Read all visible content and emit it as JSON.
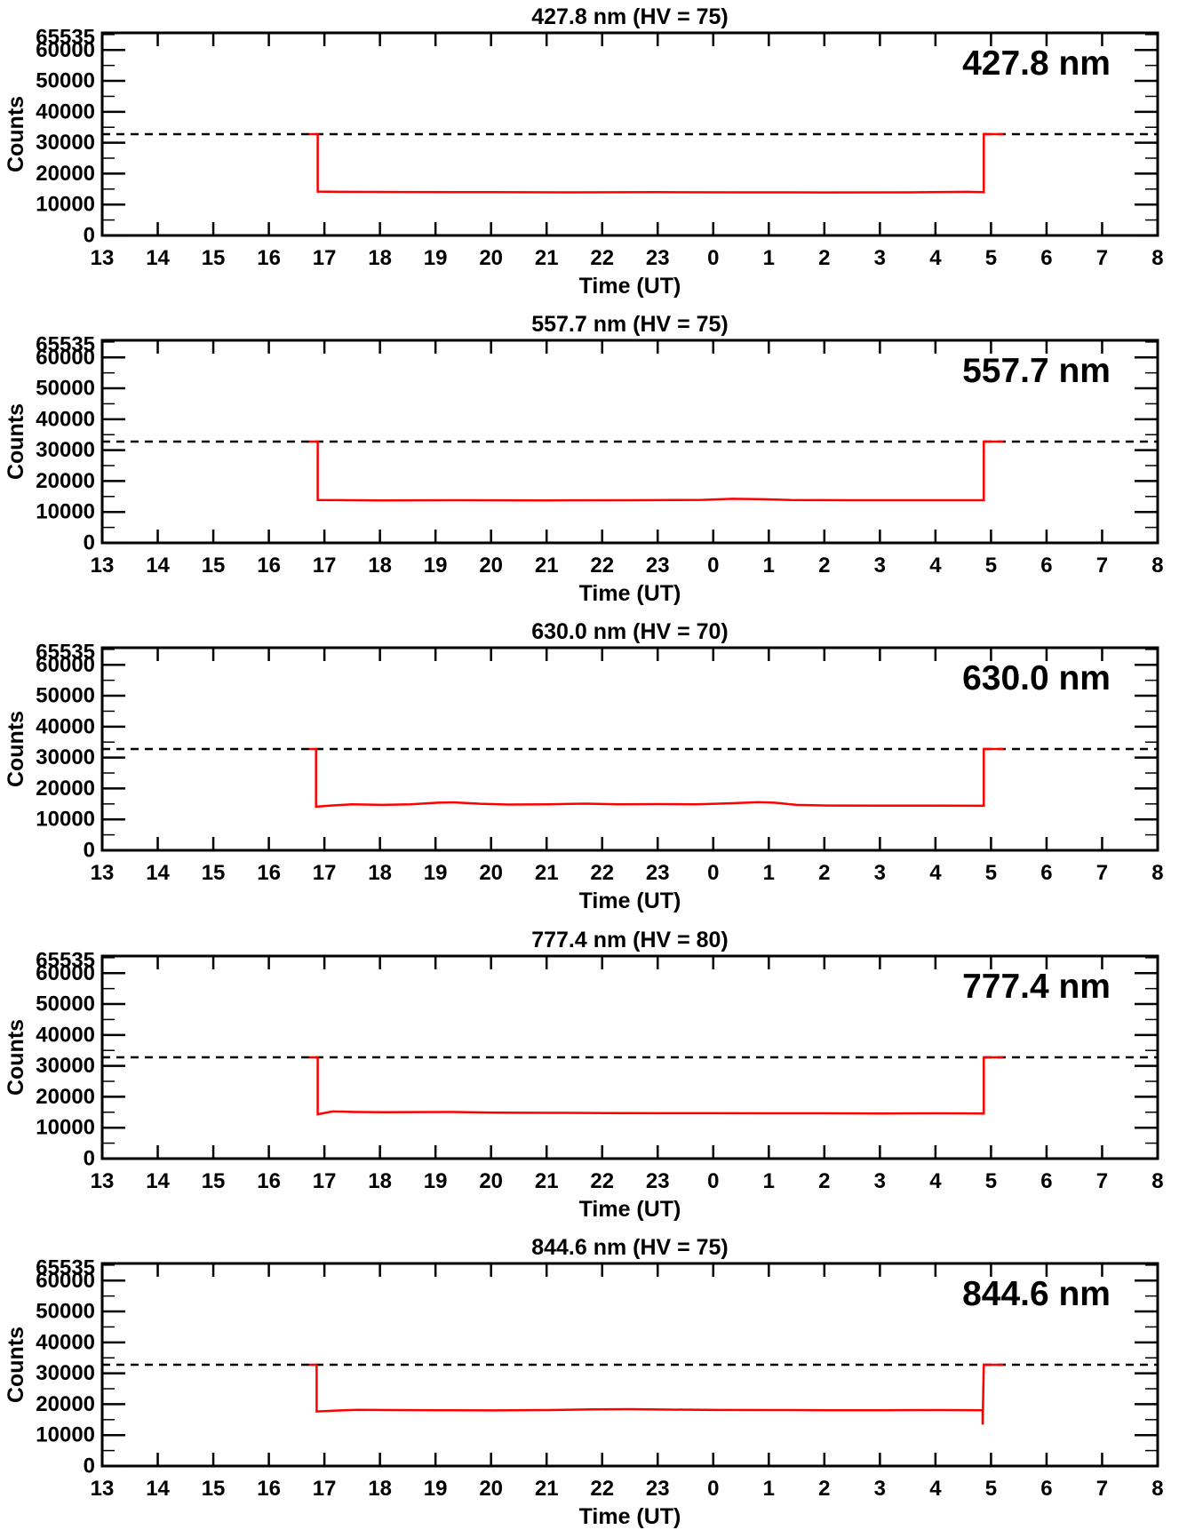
{
  "colors": {
    "trace": "#ff0000",
    "axis": "#000000",
    "background": "#ffffff",
    "dashed_line": "#000000"
  },
  "chart_data": [
    {
      "type": "line",
      "title": "427.8 nm (HV = 75)",
      "wavelength_label": "427.8 nm",
      "hv": 75,
      "xlabel": "Time (UT)",
      "ylabel": "Counts",
      "xlim": [
        13,
        32
      ],
      "ylim": [
        0,
        65535
      ],
      "dashed_level": 32767.5,
      "y_minor_step": 5000,
      "x_ticks": [
        {
          "value": 13,
          "label": "13"
        },
        {
          "value": 14,
          "label": "14"
        },
        {
          "value": 15,
          "label": "15"
        },
        {
          "value": 16,
          "label": "16"
        },
        {
          "value": 17,
          "label": "17"
        },
        {
          "value": 18,
          "label": "18"
        },
        {
          "value": 19,
          "label": "19"
        },
        {
          "value": 20,
          "label": "20"
        },
        {
          "value": 21,
          "label": "21"
        },
        {
          "value": 22,
          "label": "22"
        },
        {
          "value": 23,
          "label": "23"
        },
        {
          "value": 24,
          "label": "0"
        },
        {
          "value": 25,
          "label": "1"
        },
        {
          "value": 26,
          "label": "2"
        },
        {
          "value": 27,
          "label": "3"
        },
        {
          "value": 28,
          "label": "4"
        },
        {
          "value": 29,
          "label": "5"
        },
        {
          "value": 30,
          "label": "6"
        },
        {
          "value": 31,
          "label": "7"
        },
        {
          "value": 32,
          "label": "8"
        }
      ],
      "y_ticks": [
        {
          "value": 65535,
          "label": "65535"
        },
        {
          "value": 60000,
          "label": "60000"
        },
        {
          "value": 50000,
          "label": "50000"
        },
        {
          "value": 40000,
          "label": "40000"
        },
        {
          "value": 30000,
          "label": "30000"
        },
        {
          "value": 20000,
          "label": "20000"
        },
        {
          "value": 10000,
          "label": "10000"
        },
        {
          "value": 0,
          "label": "0"
        }
      ],
      "series": [
        {
          "name": "counts",
          "color": "#ff0000",
          "points": [
            [
              16.72,
              32767
            ],
            [
              16.88,
              32767
            ],
            [
              16.88,
              14200
            ],
            [
              17.3,
              14100
            ],
            [
              18.5,
              14050
            ],
            [
              20,
              14000
            ],
            [
              21.5,
              13950
            ],
            [
              23,
              14000
            ],
            [
              24.5,
              13950
            ],
            [
              26,
              13900
            ],
            [
              27.5,
              13950
            ],
            [
              28.55,
              14100
            ],
            [
              28.87,
              14000
            ],
            [
              28.87,
              32767
            ],
            [
              29.22,
              32767
            ]
          ]
        }
      ]
    },
    {
      "type": "line",
      "title": "557.7 nm (HV = 75)",
      "wavelength_label": "557.7 nm",
      "hv": 75,
      "xlabel": "Time (UT)",
      "ylabel": "Counts",
      "xlim": [
        13,
        32
      ],
      "ylim": [
        0,
        65535
      ],
      "dashed_level": 32767.5,
      "y_minor_step": 5000,
      "x_ticks": [
        {
          "value": 13,
          "label": "13"
        },
        {
          "value": 14,
          "label": "14"
        },
        {
          "value": 15,
          "label": "15"
        },
        {
          "value": 16,
          "label": "16"
        },
        {
          "value": 17,
          "label": "17"
        },
        {
          "value": 18,
          "label": "18"
        },
        {
          "value": 19,
          "label": "19"
        },
        {
          "value": 20,
          "label": "20"
        },
        {
          "value": 21,
          "label": "21"
        },
        {
          "value": 22,
          "label": "22"
        },
        {
          "value": 23,
          "label": "23"
        },
        {
          "value": 24,
          "label": "0"
        },
        {
          "value": 25,
          "label": "1"
        },
        {
          "value": 26,
          "label": "2"
        },
        {
          "value": 27,
          "label": "3"
        },
        {
          "value": 28,
          "label": "4"
        },
        {
          "value": 29,
          "label": "5"
        },
        {
          "value": 30,
          "label": "6"
        },
        {
          "value": 31,
          "label": "7"
        },
        {
          "value": 32,
          "label": "8"
        }
      ],
      "y_ticks": [
        {
          "value": 65535,
          "label": "65535"
        },
        {
          "value": 60000,
          "label": "60000"
        },
        {
          "value": 50000,
          "label": "50000"
        },
        {
          "value": 40000,
          "label": "40000"
        },
        {
          "value": 30000,
          "label": "30000"
        },
        {
          "value": 20000,
          "label": "20000"
        },
        {
          "value": 10000,
          "label": "10000"
        },
        {
          "value": 0,
          "label": "0"
        }
      ],
      "series": [
        {
          "name": "counts",
          "color": "#ff0000",
          "points": [
            [
              16.72,
              32767
            ],
            [
              16.88,
              32767
            ],
            [
              16.88,
              13850
            ],
            [
              18,
              13750
            ],
            [
              19.5,
              13800
            ],
            [
              21,
              13750
            ],
            [
              22.5,
              13800
            ],
            [
              23.8,
              13900
            ],
            [
              24.35,
              14250
            ],
            [
              24.9,
              14100
            ],
            [
              25.4,
              13850
            ],
            [
              26.5,
              13800
            ],
            [
              28,
              13800
            ],
            [
              28.87,
              13800
            ],
            [
              28.87,
              32767
            ],
            [
              29.22,
              32767
            ]
          ]
        }
      ]
    },
    {
      "type": "line",
      "title": "630.0 nm (HV = 70)",
      "wavelength_label": "630.0 nm",
      "hv": 70,
      "xlabel": "Time (UT)",
      "ylabel": "Counts",
      "xlim": [
        13,
        32
      ],
      "ylim": [
        0,
        65535
      ],
      "dashed_level": 32767.5,
      "y_minor_step": 5000,
      "x_ticks": [
        {
          "value": 13,
          "label": "13"
        },
        {
          "value": 14,
          "label": "14"
        },
        {
          "value": 15,
          "label": "15"
        },
        {
          "value": 16,
          "label": "16"
        },
        {
          "value": 17,
          "label": "17"
        },
        {
          "value": 18,
          "label": "18"
        },
        {
          "value": 19,
          "label": "19"
        },
        {
          "value": 20,
          "label": "20"
        },
        {
          "value": 21,
          "label": "21"
        },
        {
          "value": 22,
          "label": "22"
        },
        {
          "value": 23,
          "label": "23"
        },
        {
          "value": 24,
          "label": "0"
        },
        {
          "value": 25,
          "label": "1"
        },
        {
          "value": 26,
          "label": "2"
        },
        {
          "value": 27,
          "label": "3"
        },
        {
          "value": 28,
          "label": "4"
        },
        {
          "value": 29,
          "label": "5"
        },
        {
          "value": 30,
          "label": "6"
        },
        {
          "value": 31,
          "label": "7"
        },
        {
          "value": 32,
          "label": "8"
        }
      ],
      "y_ticks": [
        {
          "value": 65535,
          "label": "65535"
        },
        {
          "value": 60000,
          "label": "60000"
        },
        {
          "value": 50000,
          "label": "50000"
        },
        {
          "value": 40000,
          "label": "40000"
        },
        {
          "value": 30000,
          "label": "30000"
        },
        {
          "value": 20000,
          "label": "20000"
        },
        {
          "value": 10000,
          "label": "10000"
        },
        {
          "value": 0,
          "label": "0"
        }
      ],
      "series": [
        {
          "name": "counts",
          "color": "#ff0000",
          "points": [
            [
              16.72,
              32767
            ],
            [
              16.85,
              32767
            ],
            [
              16.85,
              14100
            ],
            [
              17.1,
              14450
            ],
            [
              17.5,
              14900
            ],
            [
              18.05,
              14700
            ],
            [
              18.55,
              14850
            ],
            [
              19.05,
              15400
            ],
            [
              19.35,
              15500
            ],
            [
              19.8,
              15050
            ],
            [
              20.3,
              14800
            ],
            [
              21.05,
              14900
            ],
            [
              21.7,
              15100
            ],
            [
              22.3,
              14900
            ],
            [
              23.05,
              14950
            ],
            [
              23.7,
              14900
            ],
            [
              24.3,
              15200
            ],
            [
              24.8,
              15550
            ],
            [
              25.1,
              15400
            ],
            [
              25.5,
              14700
            ],
            [
              26.05,
              14500
            ],
            [
              27.05,
              14450
            ],
            [
              28.05,
              14450
            ],
            [
              28.87,
              14400
            ],
            [
              28.87,
              32767
            ],
            [
              29.22,
              32767
            ]
          ]
        }
      ]
    },
    {
      "type": "line",
      "title": "777.4 nm (HV = 80)",
      "wavelength_label": "777.4 nm",
      "hv": 80,
      "xlabel": "Time (UT)",
      "ylabel": "Counts",
      "xlim": [
        13,
        32
      ],
      "ylim": [
        0,
        65535
      ],
      "dashed_level": 32767.5,
      "y_minor_step": 5000,
      "x_ticks": [
        {
          "value": 13,
          "label": "13"
        },
        {
          "value": 14,
          "label": "14"
        },
        {
          "value": 15,
          "label": "15"
        },
        {
          "value": 16,
          "label": "16"
        },
        {
          "value": 17,
          "label": "17"
        },
        {
          "value": 18,
          "label": "18"
        },
        {
          "value": 19,
          "label": "19"
        },
        {
          "value": 20,
          "label": "20"
        },
        {
          "value": 21,
          "label": "21"
        },
        {
          "value": 22,
          "label": "22"
        },
        {
          "value": 23,
          "label": "23"
        },
        {
          "value": 24,
          "label": "0"
        },
        {
          "value": 25,
          "label": "1"
        },
        {
          "value": 26,
          "label": "2"
        },
        {
          "value": 27,
          "label": "3"
        },
        {
          "value": 28,
          "label": "4"
        },
        {
          "value": 29,
          "label": "5"
        },
        {
          "value": 30,
          "label": "6"
        },
        {
          "value": 31,
          "label": "7"
        },
        {
          "value": 32,
          "label": "8"
        }
      ],
      "y_ticks": [
        {
          "value": 65535,
          "label": "65535"
        },
        {
          "value": 60000,
          "label": "60000"
        },
        {
          "value": 50000,
          "label": "50000"
        },
        {
          "value": 40000,
          "label": "40000"
        },
        {
          "value": 30000,
          "label": "30000"
        },
        {
          "value": 20000,
          "label": "20000"
        },
        {
          "value": 10000,
          "label": "10000"
        },
        {
          "value": 0,
          "label": "0"
        }
      ],
      "series": [
        {
          "name": "counts",
          "color": "#ff0000",
          "points": [
            [
              16.72,
              32767
            ],
            [
              16.88,
              32767
            ],
            [
              16.88,
              14350
            ],
            [
              17.15,
              15250
            ],
            [
              17.55,
              15100
            ],
            [
              18.05,
              15000
            ],
            [
              18.7,
              15050
            ],
            [
              19.3,
              15100
            ],
            [
              20.05,
              14900
            ],
            [
              21.05,
              14800
            ],
            [
              22.05,
              14750
            ],
            [
              23.05,
              14700
            ],
            [
              24.05,
              14700
            ],
            [
              25.05,
              14650
            ],
            [
              26.05,
              14650
            ],
            [
              27.05,
              14600
            ],
            [
              28.05,
              14650
            ],
            [
              28.87,
              14600
            ],
            [
              28.87,
              32767
            ],
            [
              29.22,
              32767
            ]
          ]
        }
      ]
    },
    {
      "type": "line",
      "title": "844.6 nm (HV = 75)",
      "wavelength_label": "844.6 nm",
      "hv": 75,
      "xlabel": "Time (UT)",
      "ylabel": "Counts",
      "xlim": [
        13,
        32
      ],
      "ylim": [
        0,
        65535
      ],
      "dashed_level": 32767.5,
      "y_minor_step": 5000,
      "x_ticks": [
        {
          "value": 13,
          "label": "13"
        },
        {
          "value": 14,
          "label": "14"
        },
        {
          "value": 15,
          "label": "15"
        },
        {
          "value": 16,
          "label": "16"
        },
        {
          "value": 17,
          "label": "17"
        },
        {
          "value": 18,
          "label": "18"
        },
        {
          "value": 19,
          "label": "19"
        },
        {
          "value": 20,
          "label": "20"
        },
        {
          "value": 21,
          "label": "21"
        },
        {
          "value": 22,
          "label": "22"
        },
        {
          "value": 23,
          "label": "23"
        },
        {
          "value": 24,
          "label": "0"
        },
        {
          "value": 25,
          "label": "1"
        },
        {
          "value": 26,
          "label": "2"
        },
        {
          "value": 27,
          "label": "3"
        },
        {
          "value": 28,
          "label": "4"
        },
        {
          "value": 29,
          "label": "5"
        },
        {
          "value": 30,
          "label": "6"
        },
        {
          "value": 31,
          "label": "7"
        },
        {
          "value": 32,
          "label": "8"
        }
      ],
      "y_ticks": [
        {
          "value": 65535,
          "label": "65535"
        },
        {
          "value": 60000,
          "label": "60000"
        },
        {
          "value": 50000,
          "label": "50000"
        },
        {
          "value": 40000,
          "label": "40000"
        },
        {
          "value": 30000,
          "label": "30000"
        },
        {
          "value": 20000,
          "label": "20000"
        },
        {
          "value": 10000,
          "label": "10000"
        },
        {
          "value": 0,
          "label": "0"
        }
      ],
      "series": [
        {
          "name": "counts",
          "color": "#ff0000",
          "points": [
            [
              16.72,
              32767
            ],
            [
              16.86,
              32767
            ],
            [
              16.86,
              17650
            ],
            [
              17.2,
              17950
            ],
            [
              17.6,
              18200
            ],
            [
              18.2,
              18100
            ],
            [
              19.05,
              18050
            ],
            [
              20.05,
              18000
            ],
            [
              21.05,
              18100
            ],
            [
              21.8,
              18350
            ],
            [
              22.5,
              18400
            ],
            [
              23.2,
              18250
            ],
            [
              24.05,
              18150
            ],
            [
              25.05,
              18100
            ],
            [
              26.05,
              18050
            ],
            [
              27.05,
              18050
            ],
            [
              28.05,
              18100
            ],
            [
              28.85,
              18050
            ],
            [
              28.85,
              13400
            ],
            [
              28.87,
              32767
            ],
            [
              29.22,
              32767
            ]
          ]
        }
      ]
    }
  ]
}
